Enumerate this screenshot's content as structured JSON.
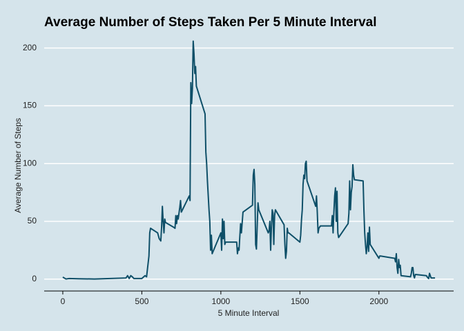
{
  "chart_data": {
    "type": "line",
    "title": "Average Number of Steps Taken Per 5 Minute Interval",
    "x_label": "5 Minute Interval",
    "y_label": "Average Number of Steps",
    "color": "#0e4f68",
    "grid": true,
    "x": [
      0,
      20,
      40,
      100,
      200,
      300,
      400,
      410,
      420,
      430,
      440,
      450,
      500,
      520,
      530,
      545,
      550,
      555,
      600,
      610,
      620,
      625,
      630,
      635,
      640,
      645,
      650,
      700,
      710,
      715,
      720,
      725,
      730,
      740,
      745,
      750,
      800,
      805,
      810,
      815,
      820,
      825,
      830,
      835,
      840,
      845,
      900,
      905,
      910,
      915,
      925,
      930,
      935,
      940,
      945,
      1000,
      1005,
      1010,
      1015,
      1020,
      1025,
      1030,
      1100,
      1105,
      1110,
      1115,
      1120,
      1125,
      1130,
      1140,
      1200,
      1205,
      1210,
      1215,
      1220,
      1225,
      1230,
      1235,
      1240,
      1300,
      1305,
      1310,
      1315,
      1320,
      1325,
      1330,
      1335,
      1340,
      1345,
      1400,
      1405,
      1410,
      1415,
      1420,
      1425,
      1430,
      1500,
      1505,
      1510,
      1515,
      1520,
      1525,
      1530,
      1535,
      1540,
      1545,
      1600,
      1605,
      1610,
      1615,
      1620,
      1625,
      1630,
      1700,
      1705,
      1710,
      1715,
      1720,
      1725,
      1730,
      1735,
      1740,
      1745,
      1800,
      1805,
      1810,
      1815,
      1820,
      1825,
      1830,
      1835,
      1840,
      1845,
      1900,
      1905,
      1910,
      1915,
      1920,
      1925,
      1930,
      1935,
      1940,
      1945,
      2000,
      2005,
      2010,
      2100,
      2105,
      2110,
      2115,
      2120,
      2125,
      2130,
      2135,
      2140,
      2200,
      2205,
      2210,
      2215,
      2220,
      2225,
      2230,
      2300,
      2305,
      2310,
      2315,
      2320,
      2325,
      2330,
      2355
    ],
    "values": [
      1.7,
      0.1,
      0.5,
      0.3,
      0.1,
      0.5,
      1,
      3,
      0.5,
      3,
      2,
      0.5,
      0.5,
      3,
      2,
      20,
      40,
      44,
      40,
      35,
      33,
      45,
      63,
      50,
      40,
      52,
      49,
      45,
      44,
      55,
      48,
      55,
      52,
      62,
      68,
      58,
      72,
      68,
      170,
      152,
      165,
      206,
      195,
      178,
      184,
      167,
      143,
      110,
      100,
      85,
      60,
      50,
      25,
      38,
      22,
      40,
      25,
      52,
      35,
      50,
      30,
      32,
      32,
      22,
      27,
      25,
      37,
      48,
      40,
      58,
      64,
      90,
      95,
      82,
      30,
      26,
      46,
      66,
      60,
      40,
      42,
      50,
      25,
      45,
      60,
      57,
      30,
      55,
      60,
      47,
      30,
      18,
      24,
      44,
      40,
      40,
      32,
      38,
      51,
      60,
      82,
      90,
      87,
      100,
      102,
      85,
      63,
      72,
      58,
      40,
      44,
      45,
      46,
      46,
      55,
      40,
      58,
      72,
      79,
      50,
      76,
      40,
      36,
      47,
      48,
      57,
      85,
      60,
      75,
      80,
      99,
      90,
      86,
      85,
      60,
      40,
      30,
      22,
      28,
      40,
      24,
      45,
      30,
      18,
      20,
      20,
      18,
      15,
      22,
      10,
      5,
      17,
      10,
      12,
      3,
      2,
      5,
      10,
      10,
      3,
      1,
      4,
      3,
      2,
      1,
      0.5,
      5,
      3,
      1,
      1
    ],
    "xlim": [
      -117.75,
      2472.75
    ],
    "ylim": [
      -10.3,
      216.5
    ],
    "xticks": [
      0,
      500,
      1000,
      1500,
      2000
    ],
    "yticks": [
      0,
      50,
      100,
      150,
      200
    ]
  }
}
